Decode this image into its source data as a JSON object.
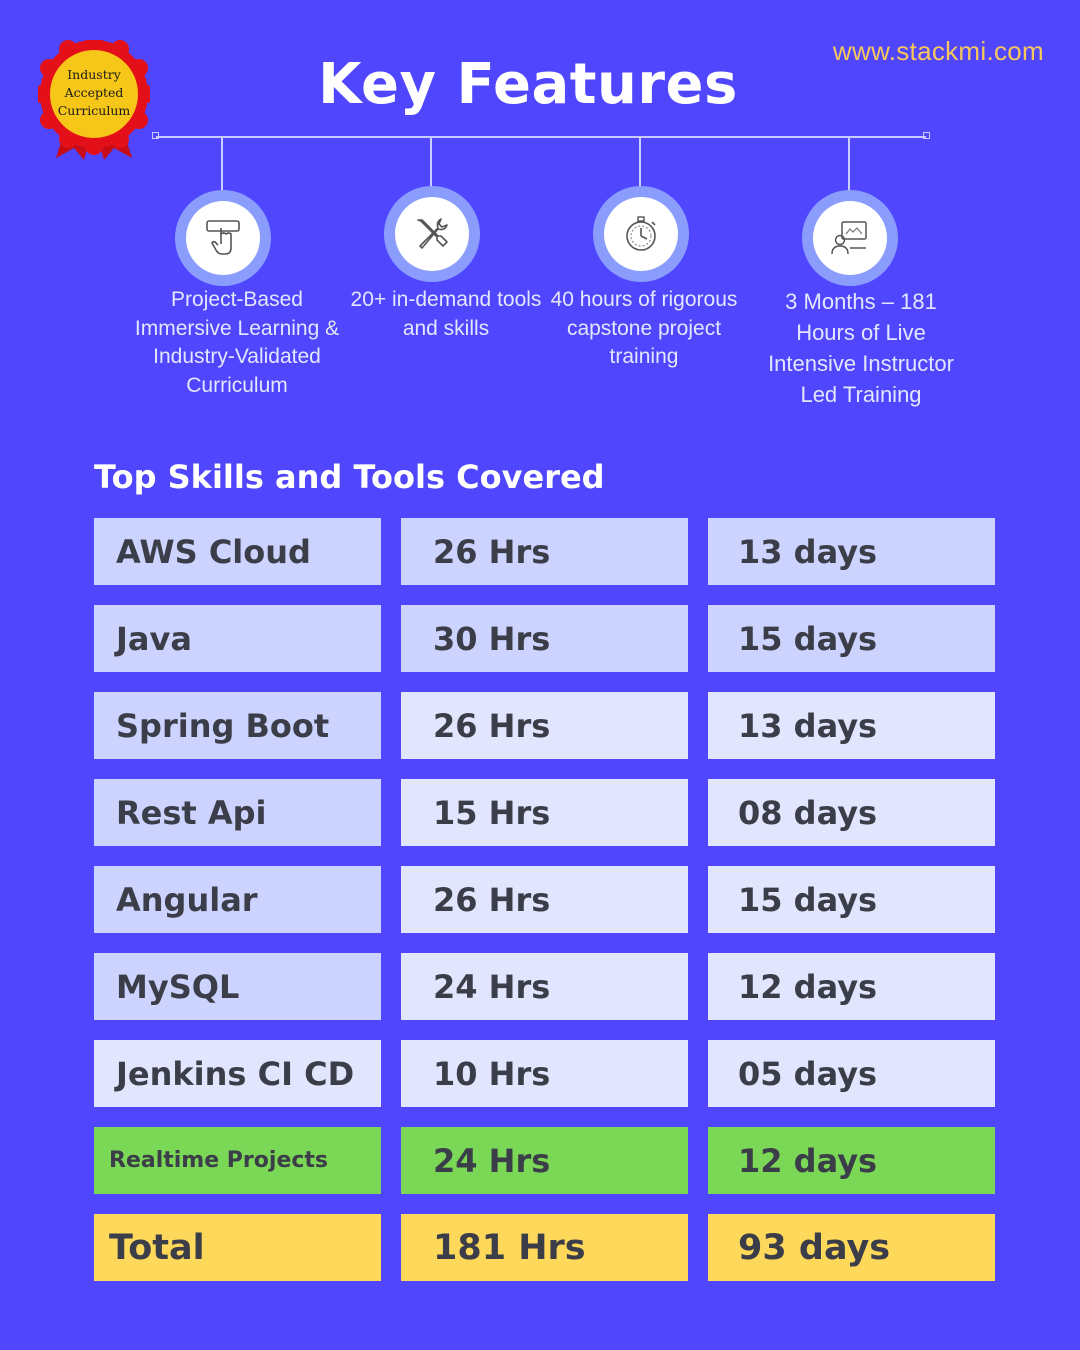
{
  "badge": {
    "text": "Industry Accepted Curriculum",
    "colors": {
      "rosette": "#e3101a",
      "center": "#f6c719"
    }
  },
  "header": {
    "title": "Key Features",
    "website": "www.stackmi.com"
  },
  "features": [
    {
      "icon": "tap-button-icon",
      "text": "Project-Based Immersive Learning & Industry-Validated Curriculum"
    },
    {
      "icon": "wrench-screwdriver-icon",
      "text": "20+ in-demand tools and skills"
    },
    {
      "icon": "stopwatch-icon",
      "text": "40 hours of rigorous capstone project training"
    },
    {
      "icon": "online-instructor-icon",
      "text": "3 Months – 181 Hours of Live Intensive Instructor Led Training"
    }
  ],
  "skills_section": {
    "title": "Top Skills and Tools Covered",
    "rows": [
      {
        "skill": "AWS Cloud",
        "hours": "26 Hrs",
        "days": "13 days"
      },
      {
        "skill": "Java",
        "hours": "30 Hrs",
        "days": "15 days"
      },
      {
        "skill": "Spring Boot",
        "hours": "26 Hrs",
        "days": "13 days"
      },
      {
        "skill": "Rest Api",
        "hours": "15 Hrs",
        "days": "08 days"
      },
      {
        "skill": "Angular",
        "hours": "26 Hrs",
        "days": "15 days"
      },
      {
        "skill": "MySQL",
        "hours": "24 Hrs",
        "days": "12 days"
      },
      {
        "skill": "Jenkins CI CD",
        "hours": "10 Hrs",
        "days": "05 days"
      },
      {
        "skill": "Realtime Projects",
        "hours": "24 Hrs",
        "days": "12 days"
      },
      {
        "skill": "Total",
        "hours": "181 Hrs",
        "days": "93 days"
      }
    ]
  },
  "colors": {
    "background": "#4f46fd",
    "row_light_1": "#cbd3fe",
    "row_light_2": "#e1e6fe",
    "highlight_green": "#7bd857",
    "highlight_yellow": "#fed85a",
    "website_text": "#f7c75c"
  }
}
